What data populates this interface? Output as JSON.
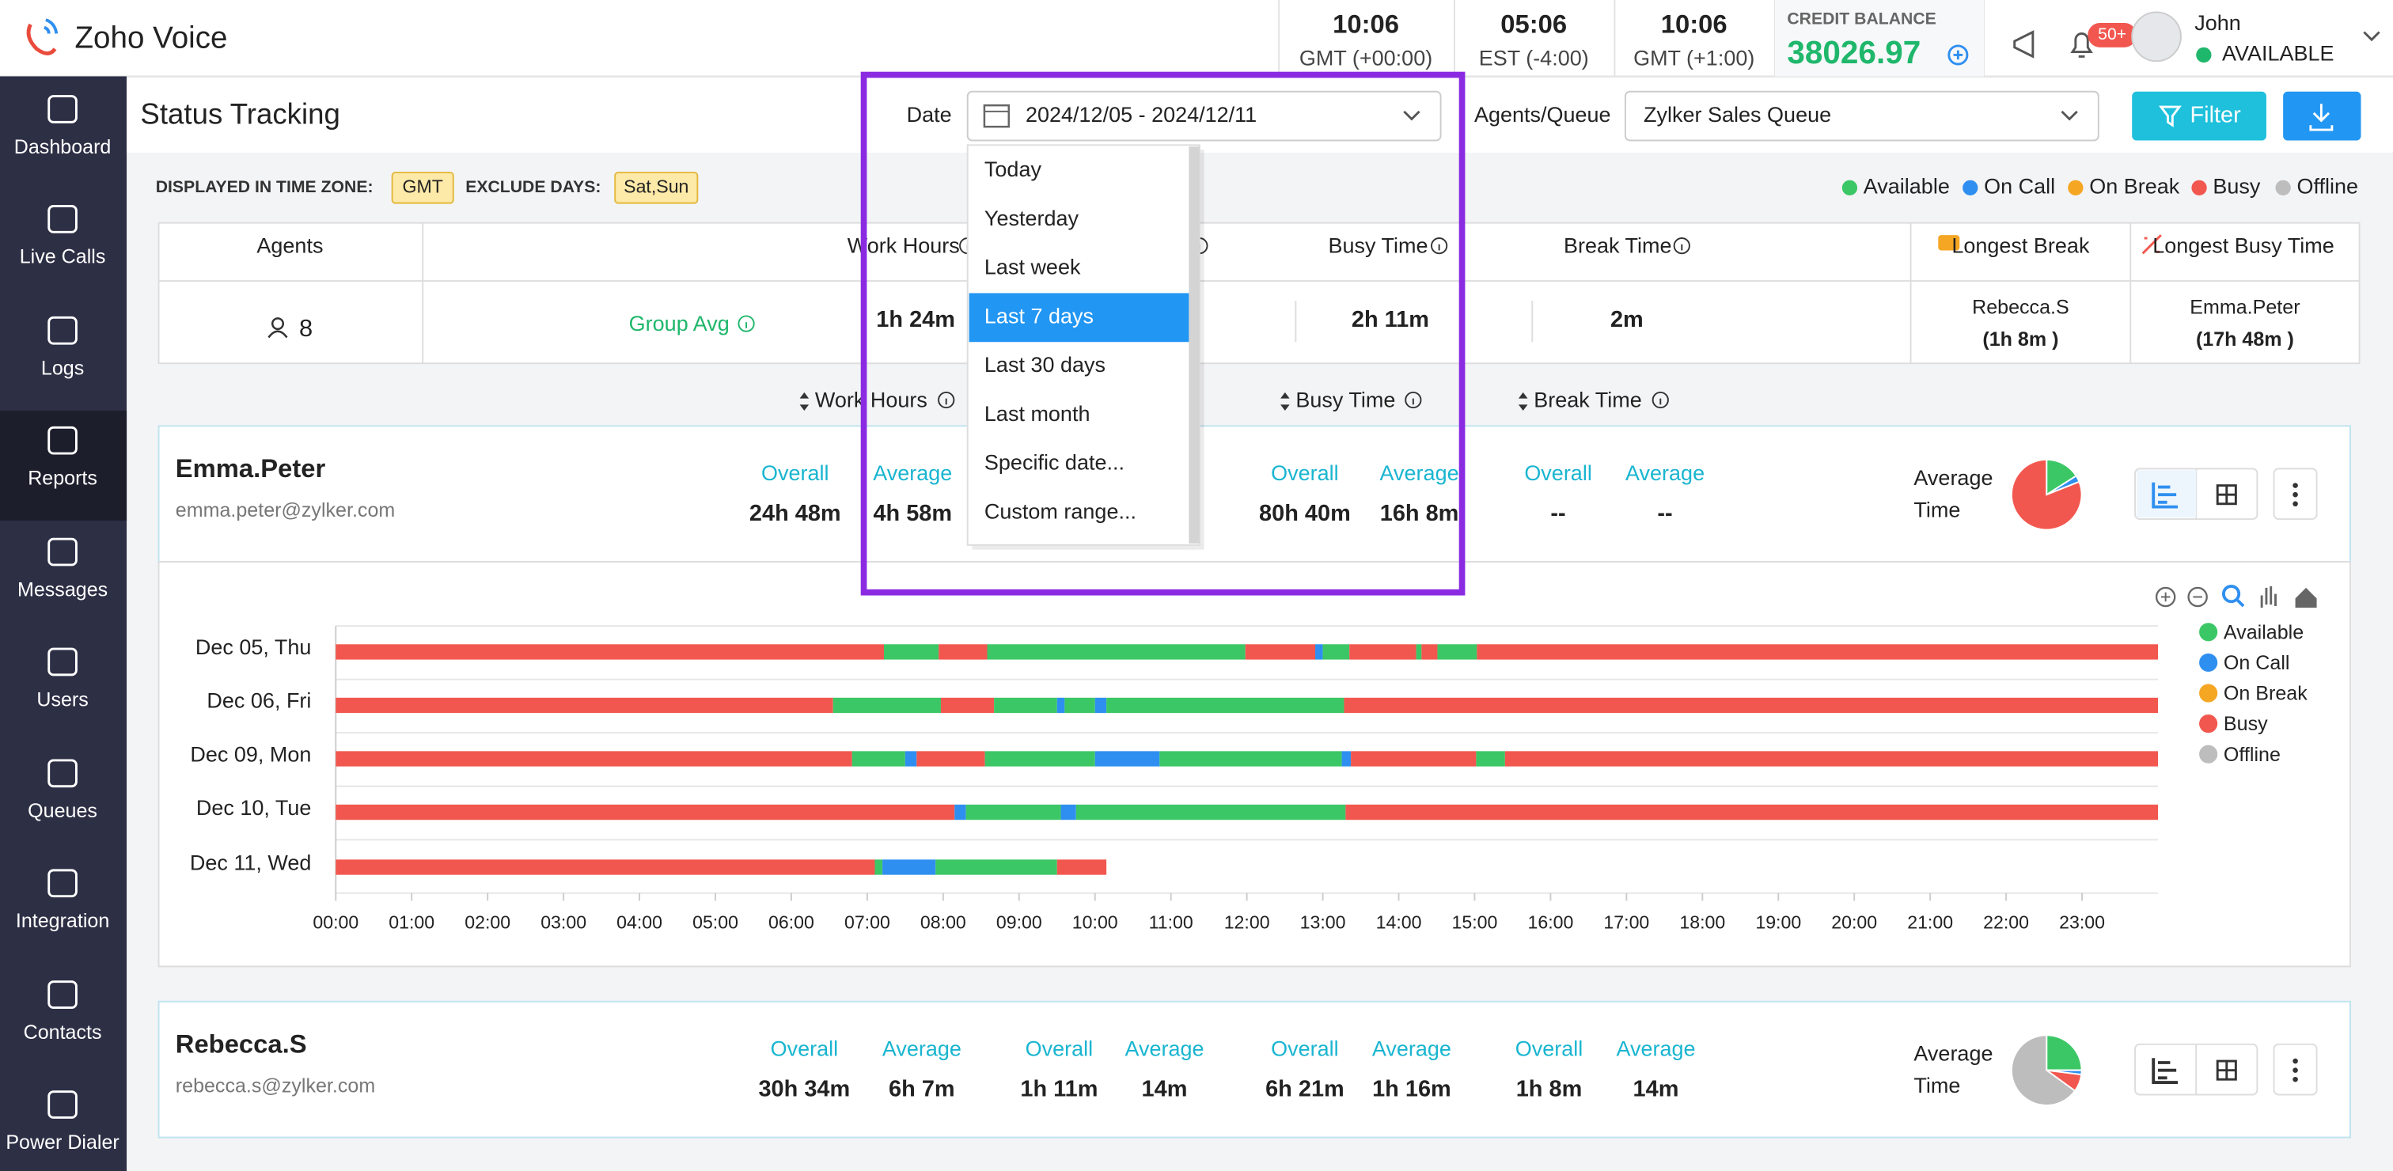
{
  "app": {
    "name": "Zoho Voice"
  },
  "clocks": [
    {
      "time": "10:06",
      "zone": "GMT (+00:00)"
    },
    {
      "time": "05:06",
      "zone": "EST (-4:00)"
    },
    {
      "time": "10:06",
      "zone": "GMT (+1:00)"
    }
  ],
  "credit": {
    "label": "CREDIT BALANCE",
    "amount": "38026.97"
  },
  "notifications": "50+",
  "user": {
    "name": "John",
    "status": "AVAILABLE"
  },
  "sidebar": {
    "items": [
      "Dashboard",
      "Live Calls",
      "Logs",
      "Reports",
      "Messages",
      "Users",
      "Queues",
      "Integration",
      "Contacts",
      "Power Dialer"
    ],
    "active": 3
  },
  "toolbar": {
    "title": "Status Tracking",
    "date_label": "Date",
    "date_value": "2024/12/05 - 2024/12/11",
    "queue_label": "Agents/Queue",
    "queue_value": "Zylker Sales Queue",
    "filter": "Filter"
  },
  "date_menu": {
    "options": [
      "Today",
      "Yesterday",
      "Last week",
      "Last 7 days",
      "Last 30 days",
      "Last month",
      "Specific date...",
      "Custom range..."
    ],
    "selected": 3
  },
  "filters": {
    "timezone_label": "DISPLAYED IN TIME ZONE:",
    "timezone": "GMT",
    "exclude_label": "EXCLUDE DAYS:",
    "exclude": "Sat,Sun"
  },
  "legend": [
    {
      "name": "Available",
      "color": "#3cc766"
    },
    {
      "name": "On Call",
      "color": "#2f8ff0"
    },
    {
      "name": "On Break",
      "color": "#f5a623"
    },
    {
      "name": "Busy",
      "color": "#f2574f"
    },
    {
      "name": "Offline",
      "color": "#bdbdbd"
    }
  ],
  "summary": {
    "headers": {
      "agents": "Agents",
      "work": "Work Hours",
      "busy": "Busy Time",
      "break": "Break Time",
      "longest_break": "Longest Break",
      "longest_busy": "Longest Busy Time"
    },
    "agents": "8",
    "group_avg": "Group Avg",
    "work": "1h 24m",
    "busy": "2h 11m",
    "break": "2m",
    "longest_break": {
      "name": "Rebecca.S",
      "value": "(1h 8m )"
    },
    "longest_busy": {
      "name": "Emma.Peter",
      "value": "(17h 48m )"
    }
  },
  "sort_headers": {
    "work": "Work Hours",
    "busy": "Busy Time",
    "break": "Break Time"
  },
  "stat_labels": {
    "overall": "Overall",
    "average": "Average"
  },
  "average_time_label": [
    "Average",
    "Time"
  ],
  "agents": [
    {
      "name": "Emma.Peter",
      "email": "emma.peter@zylker.com",
      "stats": {
        "work": {
          "overall": "24h 48m",
          "average": "4h 58m"
        },
        "busy": {
          "overall": "80h 40m",
          "average": "16h 8m"
        },
        "break": {
          "overall": "--",
          "average": "--"
        }
      },
      "pie": [
        16,
        3,
        0,
        81,
        0
      ]
    },
    {
      "name": "Rebecca.S",
      "email": "rebecca.s@zylker.com",
      "stats": {
        "work": {
          "overall": "30h 34m",
          "average": "6h 7m"
        },
        "on_call": {
          "overall": "1h 11m",
          "average": "14m"
        },
        "busy": {
          "overall": "6h 21m",
          "average": "1h 16m"
        },
        "break": {
          "overall": "1h 8m",
          "average": "14m"
        }
      },
      "pie": [
        25,
        2,
        0,
        8,
        65
      ]
    }
  ],
  "timeline": {
    "xlim": [
      0,
      24
    ],
    "xticks": [
      {
        "value": 0,
        "label": "00:00"
      },
      {
        "value": 1,
        "label": "01:00"
      },
      {
        "value": 2,
        "label": "02:00"
      },
      {
        "value": 3,
        "label": "03:00"
      },
      {
        "value": 4,
        "label": "04:00"
      },
      {
        "value": 5,
        "label": "05:00"
      },
      {
        "value": 6,
        "label": "06:00"
      },
      {
        "value": 7,
        "label": "07:00"
      },
      {
        "value": 8,
        "label": "08:00"
      },
      {
        "value": 9,
        "label": "09:00"
      },
      {
        "value": 10,
        "label": "10:00"
      },
      {
        "value": 11,
        "label": "11:00"
      },
      {
        "value": 12,
        "label": "12:00"
      },
      {
        "value": 13,
        "label": "13:00"
      },
      {
        "value": 14,
        "label": "14:00"
      },
      {
        "value": 15,
        "label": "15:00"
      },
      {
        "value": 16,
        "label": "16:00"
      },
      {
        "value": 17,
        "label": "17:00"
      },
      {
        "value": 18,
        "label": "18:00"
      },
      {
        "value": 19,
        "label": "19:00"
      },
      {
        "value": 20,
        "label": "20:00"
      },
      {
        "value": 21,
        "label": "21:00"
      },
      {
        "value": 22,
        "label": "22:00"
      },
      {
        "value": 23,
        "label": "23:00"
      }
    ],
    "rows": [
      {
        "day": "Dec 05, Thu",
        "segments": [
          {
            "status": "Busy",
            "start": 0,
            "end": 7.22
          },
          {
            "status": "Available",
            "start": 7.22,
            "end": 7.94
          },
          {
            "status": "Busy",
            "start": 7.94,
            "end": 8.58
          },
          {
            "status": "Available",
            "start": 8.58,
            "end": 11.98
          },
          {
            "status": "Busy",
            "start": 11.98,
            "end": 12.9
          },
          {
            "status": "On Call",
            "start": 12.9,
            "end": 13.0
          },
          {
            "status": "Available",
            "start": 13.0,
            "end": 13.35
          },
          {
            "status": "Busy",
            "start": 13.35,
            "end": 14.23
          },
          {
            "status": "Available",
            "start": 14.23,
            "end": 14.3
          },
          {
            "status": "Busy",
            "start": 14.3,
            "end": 14.51
          },
          {
            "status": "Available",
            "start": 14.51,
            "end": 15.03
          },
          {
            "status": "Busy",
            "start": 15.03,
            "end": 24
          }
        ]
      },
      {
        "day": "Dec 06, Fri",
        "segments": [
          {
            "status": "Busy",
            "start": 0,
            "end": 6.55
          },
          {
            "status": "Available",
            "start": 6.55,
            "end": 7.97
          },
          {
            "status": "Busy",
            "start": 7.97,
            "end": 8.67
          },
          {
            "status": "Available",
            "start": 8.67,
            "end": 9.5
          },
          {
            "status": "On Call",
            "start": 9.5,
            "end": 9.6
          },
          {
            "status": "Available",
            "start": 9.6,
            "end": 10.0
          },
          {
            "status": "On Call",
            "start": 10.0,
            "end": 10.15
          },
          {
            "status": "Available",
            "start": 10.15,
            "end": 13.28
          },
          {
            "status": "Busy",
            "start": 13.28,
            "end": 24
          }
        ]
      },
      {
        "day": "Dec 09, Mon",
        "segments": [
          {
            "status": "Busy",
            "start": 0,
            "end": 6.8
          },
          {
            "status": "Available",
            "start": 6.8,
            "end": 7.5
          },
          {
            "status": "On Call",
            "start": 7.5,
            "end": 7.65
          },
          {
            "status": "Busy",
            "start": 7.65,
            "end": 8.55
          },
          {
            "status": "Available",
            "start": 8.55,
            "end": 10.0
          },
          {
            "status": "On Call",
            "start": 10.0,
            "end": 10.85
          },
          {
            "status": "Available",
            "start": 10.85,
            "end": 13.25
          },
          {
            "status": "On Call",
            "start": 13.25,
            "end": 13.37
          },
          {
            "status": "Busy",
            "start": 13.37,
            "end": 15.02
          },
          {
            "status": "Available",
            "start": 15.02,
            "end": 15.4
          },
          {
            "status": "Busy",
            "start": 15.4,
            "end": 24
          }
        ]
      },
      {
        "day": "Dec 10, Tue",
        "segments": [
          {
            "status": "Busy",
            "start": 0,
            "end": 8.15
          },
          {
            "status": "On Call",
            "start": 8.15,
            "end": 8.3
          },
          {
            "status": "Available",
            "start": 8.3,
            "end": 9.55
          },
          {
            "status": "On Call",
            "start": 9.55,
            "end": 9.75
          },
          {
            "status": "Available",
            "start": 9.75,
            "end": 13.3
          },
          {
            "status": "Busy",
            "start": 13.3,
            "end": 24
          }
        ]
      },
      {
        "day": "Dec 11, Wed",
        "segments": [
          {
            "status": "Busy",
            "start": 0,
            "end": 7.1
          },
          {
            "status": "Available",
            "start": 7.1,
            "end": 7.2
          },
          {
            "status": "On Call",
            "start": 7.2,
            "end": 7.9
          },
          {
            "status": "Available",
            "start": 7.9,
            "end": 9.5
          },
          {
            "status": "Busy",
            "start": 9.5,
            "end": 10.15
          }
        ]
      }
    ]
  }
}
